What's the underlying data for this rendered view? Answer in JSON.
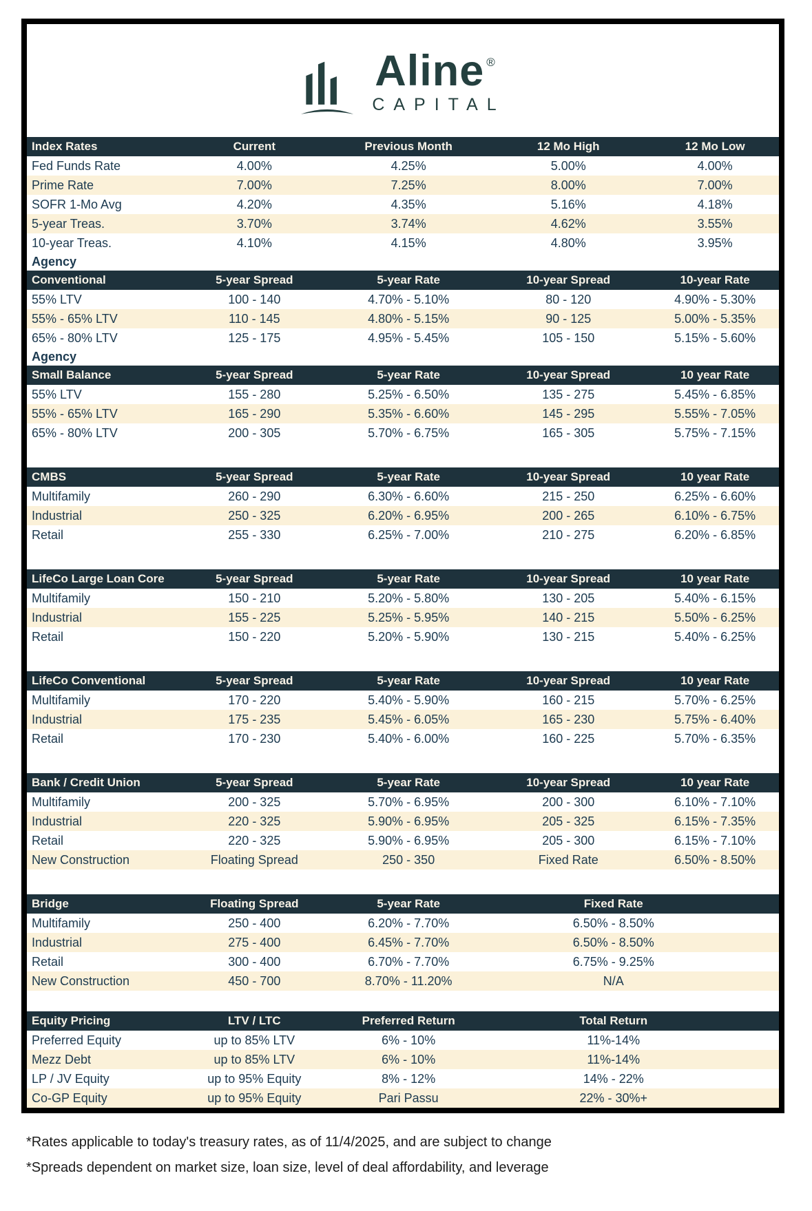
{
  "logo": {
    "name": "Aline",
    "registered": "®",
    "subtitle": "CAPITAL"
  },
  "sections": [
    {
      "type": "table",
      "id": "index-rates-table",
      "cols": 5,
      "gap": "none",
      "headers": [
        "Index Rates",
        "Current",
        "Previous Month",
        "12 Mo High",
        "12 Mo Low"
      ],
      "rows": [
        [
          "Fed Funds Rate",
          "4.00%",
          "4.25%",
          "5.00%",
          "4.00%"
        ],
        [
          "Prime Rate",
          "7.00%",
          "7.25%",
          "8.00%",
          "7.00%"
        ],
        [
          "SOFR 1-Mo Avg",
          "4.20%",
          "4.35%",
          "5.16%",
          "4.18%"
        ],
        [
          "5-year Treas.",
          "3.70%",
          "3.74%",
          "4.62%",
          "3.55%"
        ],
        [
          "10-year Treas.",
          "4.10%",
          "4.15%",
          "4.80%",
          "3.95%"
        ]
      ]
    },
    {
      "type": "label",
      "id": "agency-label-1",
      "text": "Agency"
    },
    {
      "type": "table",
      "id": "agency-conventional-table",
      "cols": 5,
      "gap": "none",
      "headers": [
        "Conventional",
        "5-year Spread",
        "5-year Rate",
        "10-year Spread",
        "10-year Rate"
      ],
      "rows": [
        [
          "55% LTV",
          "100 - 140",
          "4.70% - 5.10%",
          "80 - 120",
          "4.90% - 5.30%"
        ],
        [
          "55% - 65% LTV",
          "110 - 145",
          "4.80% - 5.15%",
          "90 - 125",
          "5.00% - 5.35%"
        ],
        [
          "65% - 80% LTV",
          "125 - 175",
          "4.95% - 5.45%",
          "105 - 150",
          "5.15% - 5.60%"
        ]
      ]
    },
    {
      "type": "label",
      "id": "agency-label-2",
      "text": "Agency"
    },
    {
      "type": "table",
      "id": "agency-small-balance-table",
      "cols": 5,
      "gap": "none",
      "headers": [
        "Small Balance",
        "5-year Spread",
        "5-year Rate",
        "10-year Spread",
        "10 year Rate"
      ],
      "rows": [
        [
          "55% LTV",
          "155 - 280",
          "5.25% - 6.50%",
          "135 - 275",
          "5.45% - 6.85%"
        ],
        [
          "55% - 65% LTV",
          "165 - 290",
          "5.35% - 6.60%",
          "145 - 295",
          "5.55% - 7.05%"
        ],
        [
          "65% - 80% LTV",
          "200 - 305",
          "5.70% - 6.75%",
          "165 - 305",
          "5.75% - 7.15%"
        ]
      ]
    },
    {
      "type": "table",
      "id": "cmbs-table",
      "cols": 5,
      "gap": "normal",
      "headers": [
        "CMBS",
        "5-year Spread",
        "5-year Rate",
        "10-year Spread",
        "10 year Rate"
      ],
      "rows": [
        [
          "Multifamily",
          "260 - 290",
          "6.30% - 6.60%",
          "215 - 250",
          "6.25% - 6.60%"
        ],
        [
          "Industrial",
          "250 - 325",
          "6.20% - 6.95%",
          "200 - 265",
          "6.10% - 6.75%"
        ],
        [
          "Retail",
          "255 - 330",
          "6.25% - 7.00%",
          "210 - 275",
          "6.20% - 6.85%"
        ]
      ]
    },
    {
      "type": "table",
      "id": "lifeco-large-loan-core-table",
      "cols": 5,
      "gap": "normal",
      "headers": [
        "LifeCo Large Loan Core",
        "5-year Spread",
        "5-year Rate",
        "10-year Spread",
        "10 year Rate"
      ],
      "rows": [
        [
          "Multifamily",
          "150 - 210",
          "5.20% - 5.80%",
          "130 - 205",
          "5.40% - 6.15%"
        ],
        [
          "Industrial",
          "155 - 225",
          "5.25% - 5.95%",
          "140 - 215",
          "5.50% - 6.25%"
        ],
        [
          "Retail",
          "150 - 220",
          "5.20% - 5.90%",
          "130 - 215",
          "5.40% - 6.25%"
        ]
      ]
    },
    {
      "type": "table",
      "id": "lifeco-conventional-table",
      "cols": 5,
      "gap": "normal",
      "headers": [
        "LifeCo Conventional",
        "5-year Spread",
        "5-year Rate",
        "10-year Spread",
        "10 year Rate"
      ],
      "rows": [
        [
          "Multifamily",
          "170 - 220",
          "5.40% - 5.90%",
          "160 - 215",
          "5.70% - 6.25%"
        ],
        [
          "Industrial",
          "175 - 235",
          "5.45% - 6.05%",
          "165 - 230",
          "5.75% - 6.40%"
        ],
        [
          "Retail",
          "170 - 230",
          "5.40% - 6.00%",
          "160 - 225",
          "5.70% - 6.35%"
        ]
      ]
    },
    {
      "type": "table",
      "id": "bank-credit-union-table",
      "cols": 5,
      "gap": "normal",
      "headers": [
        "Bank / Credit Union",
        "5-year Spread",
        "5-year Rate",
        "10-year Spread",
        "10 year Rate"
      ],
      "rows": [
        [
          "Multifamily",
          "200 - 325",
          "5.70% - 6.95%",
          "200 - 300",
          "6.10% - 7.10%"
        ],
        [
          "Industrial",
          "220 - 325",
          "5.90% - 6.95%",
          "205 - 325",
          "6.15% - 7.35%"
        ],
        [
          "Retail",
          "220 - 325",
          "5.90% - 6.95%",
          "205 - 300",
          "6.15% - 7.10%"
        ],
        [
          "New Construction",
          "Floating Spread",
          "250 - 350",
          "Fixed Rate",
          "6.50% - 8.50%"
        ]
      ]
    },
    {
      "type": "table",
      "id": "bridge-table",
      "cols": 4,
      "gap": "normal",
      "headers": [
        "Bridge",
        "Floating Spread",
        "5-year Rate",
        "Fixed Rate"
      ],
      "rows": [
        [
          "Multifamily",
          "250 - 400",
          "6.20% - 7.70%",
          "6.50% - 8.50%"
        ],
        [
          "Industrial",
          "275 - 400",
          "6.45% - 7.70%",
          "6.50% - 8.50%"
        ],
        [
          "Retail",
          "300 - 400",
          "6.70% - 7.70%",
          "6.75% - 9.25%"
        ],
        [
          "New Construction",
          "450 - 700",
          "8.70% - 11.20%",
          "N/A"
        ]
      ]
    },
    {
      "type": "table",
      "id": "equity-pricing-table",
      "cols": 4,
      "gap": "large",
      "headers": [
        "Equity Pricing",
        "LTV / LTC",
        "Preferred Return",
        "Total Return"
      ],
      "rows": [
        [
          "Preferred Equity",
          "up to 85% LTV",
          "6% - 10%",
          "11%-14%"
        ],
        [
          "Mezz Debt",
          "up to 85% LTV",
          "6% - 10%",
          "11%-14%"
        ],
        [
          "LP / JV Equity",
          "up to 95% Equity",
          "8% - 12%",
          "14% - 22%"
        ],
        [
          "Co-GP Equity",
          "up to 95% Equity",
          "Pari Passu",
          "22% - 30%+"
        ]
      ]
    }
  ],
  "footnotes": [
    "*Rates applicable to today's treasury rates, as of 11/4/2025, and are subject to change",
    "*Spreads dependent on market size, loan size, level of deal affordability, and leverage"
  ]
}
